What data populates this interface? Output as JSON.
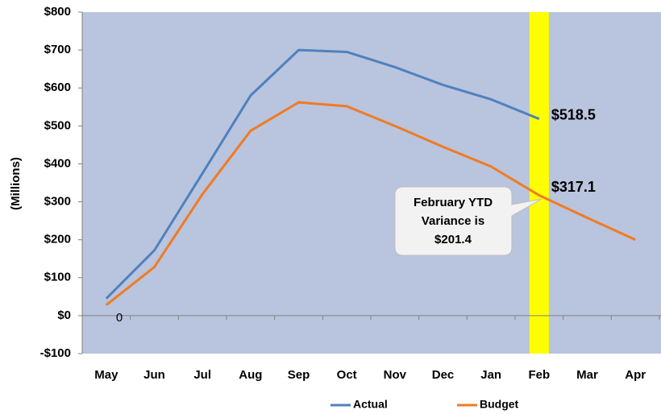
{
  "chart_data": {
    "type": "line",
    "y_axis_label": "(Millions)",
    "categories": [
      "May",
      "Jun",
      "Jul",
      "Aug",
      "Sep",
      "Oct",
      "Nov",
      "Dec",
      "Jan",
      "Feb",
      "Mar",
      "Apr"
    ],
    "series": [
      {
        "name": "Actual",
        "color": "#4f81bd",
        "values": [
          45,
          172,
          375,
          580,
          700,
          695,
          655,
          608,
          570,
          518.5,
          null,
          null
        ],
        "value_labels": [
          null,
          null,
          null,
          null,
          null,
          null,
          null,
          null,
          null,
          "$518.5",
          null,
          null
        ]
      },
      {
        "name": "Budget",
        "color": "#f07b22",
        "values": [
          28,
          128,
          320,
          487,
          562,
          552,
          500,
          445,
          393,
          317.1,
          258,
          200
        ],
        "value_labels": [
          null,
          null,
          null,
          null,
          null,
          null,
          null,
          null,
          null,
          "$317.1",
          null,
          null
        ]
      }
    ],
    "ylim": [
      -100,
      800
    ],
    "yticks": [
      {
        "value": -100,
        "label": "-$100"
      },
      {
        "value": 0,
        "label": "$0"
      },
      {
        "value": 100,
        "label": "$100"
      },
      {
        "value": 200,
        "label": "$200"
      },
      {
        "value": 300,
        "label": "$300"
      },
      {
        "value": 400,
        "label": "$400"
      },
      {
        "value": 500,
        "label": "$500"
      },
      {
        "value": 600,
        "label": "$600"
      },
      {
        "value": 700,
        "label": "$700"
      },
      {
        "value": 800,
        "label": "$800"
      }
    ],
    "highlight_category": "Feb",
    "highlight_color": "#ffff00",
    "plot_background": "#b9c4de",
    "callout": [
      "February YTD",
      "Variance is",
      "$201.4"
    ],
    "zero_label": "0",
    "legend": "bottom"
  }
}
